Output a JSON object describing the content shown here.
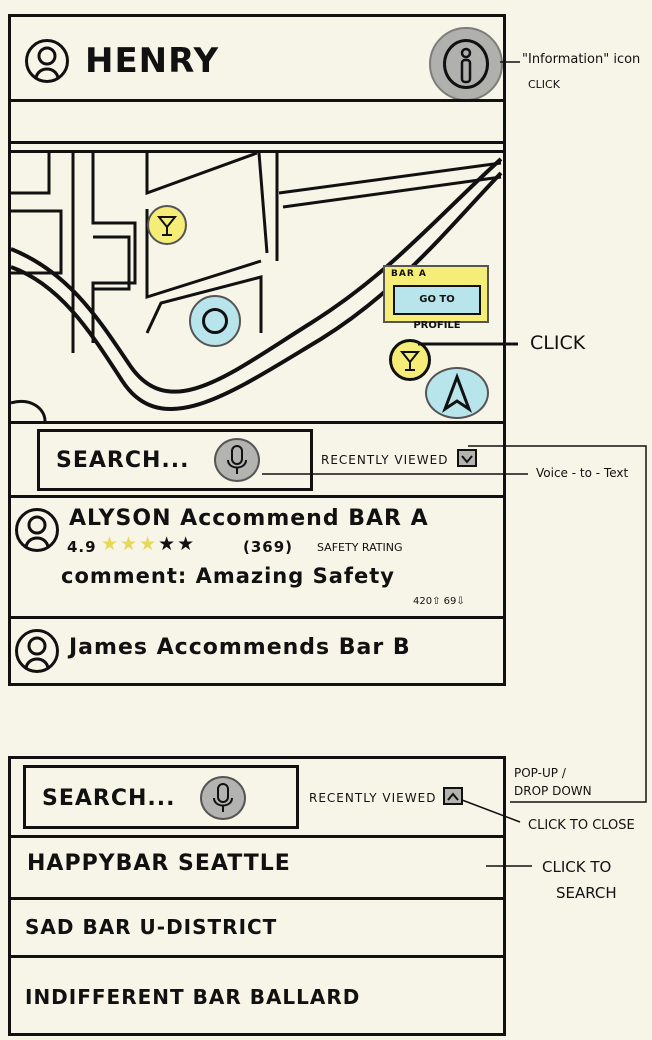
{
  "app": {
    "user_name": "HENRY"
  },
  "annotations": {
    "info_icon": "\"Information\" icon",
    "info_click": "CLICK",
    "click": "CLICK",
    "voice": "Voice - to - Text",
    "popup": "POP-UP /",
    "dropdown": "DROP DOWN",
    "click_close": "CLICK TO CLOSE",
    "click_search_1": "CLICK TO",
    "click_search_2": "SEARCH"
  },
  "map": {
    "popup_title": "BAR A",
    "popup_button": "GO TO PROFILE"
  },
  "search": {
    "placeholder": "SEARCH...",
    "recently_viewed": "RECENTLY VIEWED"
  },
  "feed": [
    {
      "title": "ALYSON Accommend BAR A",
      "rating": "4.9",
      "count": "(369)",
      "rating_label": "SAFETY RATING",
      "comment": "comment: Amazing Safety",
      "up": "420",
      "down": "69"
    },
    {
      "title": "James Accommends Bar B"
    }
  ],
  "dropdown": {
    "placeholder": "SEARCH...",
    "recently_viewed": "RECENTLY VIEWED",
    "items": [
      "HAPPYBAR SEATTLE",
      "SAD BAR U-DISTRICT",
      "INDIFFERENT BAR BALLARD"
    ]
  },
  "colors": {
    "paper": "#f7f5e8",
    "yellow": "#f6ec78",
    "cyan": "#b8e4ec",
    "grey": "#b3b3b0"
  }
}
